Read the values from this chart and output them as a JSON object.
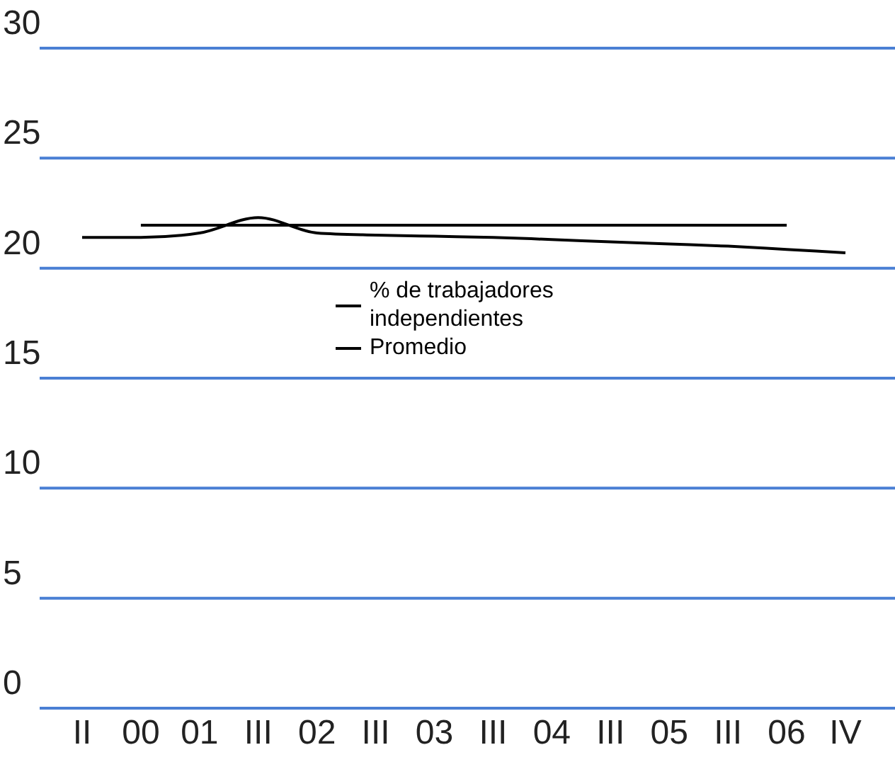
{
  "chart_data": {
    "type": "line",
    "categories": [
      "II",
      "00",
      "01",
      "III",
      "02",
      "III",
      "03",
      "III",
      "04",
      "III",
      "05",
      "III",
      "06",
      "IV"
    ],
    "series": [
      {
        "name": "% de trabajadores independientes",
        "color": "#000000",
        "values": [
          21.4,
          21.4,
          21.6,
          22.3,
          21.6,
          21.5,
          21.45,
          21.4,
          21.3,
          21.2,
          21.1,
          21.0,
          20.85,
          20.7
        ]
      },
      {
        "name": "Promedio",
        "color": "#000000",
        "values": [
          null,
          21.95,
          21.95,
          21.95,
          21.95,
          21.95,
          21.95,
          21.95,
          21.95,
          21.95,
          21.95,
          21.95,
          21.95,
          null
        ]
      }
    ],
    "ylim": [
      0,
      30
    ],
    "yticks": [
      0,
      5,
      10,
      15,
      20,
      25,
      30
    ],
    "grid": "y",
    "legend": "top",
    "marker": "none",
    "line_style": "solid"
  }
}
